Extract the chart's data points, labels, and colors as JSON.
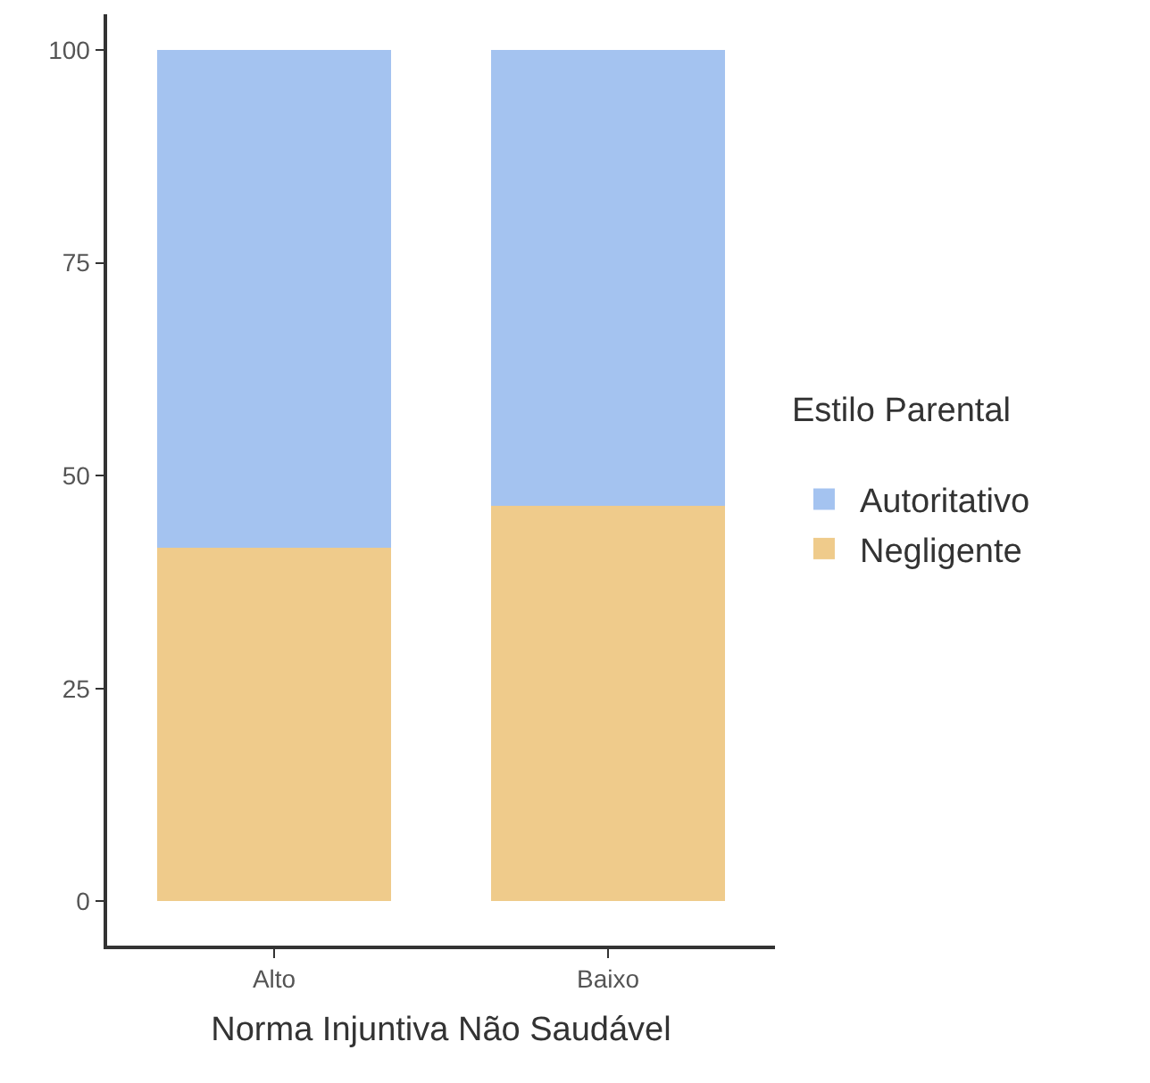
{
  "chart_data": {
    "type": "bar",
    "stacked": true,
    "xlabel": "Norma Injuntiva Não Saudável",
    "legend_title": "Estilo Parental",
    "categories": [
      "Alto",
      "Baixo"
    ],
    "series": [
      {
        "name": "Negligente",
        "color": "#efcb8b",
        "values": [
          41.5,
          46.5
        ]
      },
      {
        "name": "Autoritativo",
        "color": "#a4c3f0",
        "values": [
          58.5,
          53.5
        ]
      }
    ],
    "ylim": [
      -5.2,
      104.2
    ],
    "yticks": [
      0,
      25,
      50,
      75,
      100
    ],
    "grid": false,
    "legend": "right"
  }
}
